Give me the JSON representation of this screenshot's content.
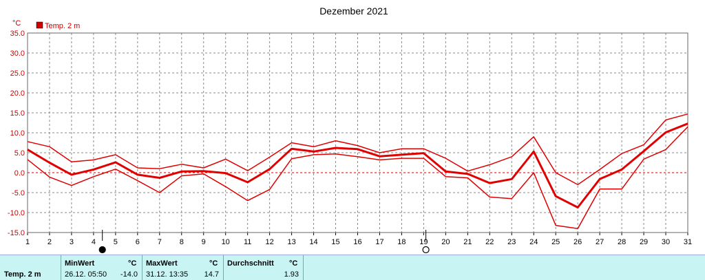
{
  "chart_data": {
    "type": "line",
    "title": "Dezember 2021",
    "unit": "°C",
    "legend": "Temp. 2 m",
    "legend_color": "#cc0000",
    "line_color": "#e00000",
    "grid_color": "#888888",
    "zero_line_color": "#cc0000",
    "xlim": [
      1,
      31
    ],
    "ylim": [
      -15,
      35
    ],
    "yticks": [
      35,
      30,
      25,
      20,
      15,
      10,
      5,
      0,
      -5,
      -10,
      -15
    ],
    "ytick_labels": [
      "35.0",
      "30.0",
      "25.0",
      "20.0",
      "15.0",
      "10.0",
      "5.0",
      "0.0",
      "-5.0",
      "-10.0",
      "-15.0"
    ],
    "x": [
      1,
      2,
      3,
      4,
      5,
      6,
      7,
      8,
      9,
      10,
      11,
      12,
      13,
      14,
      15,
      16,
      17,
      18,
      19,
      20,
      21,
      22,
      23,
      24,
      25,
      26,
      27,
      28,
      29,
      30,
      31
    ],
    "series": [
      {
        "role": "max",
        "width": 1.5,
        "values": [
          7.8,
          6.5,
          2.7,
          3.2,
          4.5,
          1.2,
          1.0,
          2.1,
          1.2,
          3.4,
          0.5,
          3.9,
          7.5,
          6.5,
          8.0,
          6.8,
          5.0,
          6.0,
          6.0,
          3.6,
          0.4,
          2.0,
          4.0,
          9.0,
          0.0,
          -3.0,
          0.8,
          4.8,
          7.0,
          13.2,
          14.7
        ]
      },
      {
        "role": "mean",
        "width": 3,
        "values": [
          5.8,
          2.5,
          -0.5,
          0.8,
          2.6,
          -0.5,
          -1.3,
          0.3,
          0.4,
          -0.1,
          -2.4,
          0.9,
          6.0,
          5.3,
          6.2,
          5.9,
          4.1,
          4.5,
          4.9,
          0.3,
          -0.3,
          -2.6,
          -1.6,
          5.3,
          -5.9,
          -8.7,
          -1.6,
          0.8,
          5.4,
          10.1,
          12.3
        ]
      },
      {
        "role": "min",
        "width": 1.5,
        "values": [
          3.3,
          -1.1,
          -3.2,
          -1.0,
          0.9,
          -2.0,
          -5.0,
          -0.8,
          -0.3,
          -3.5,
          -7.0,
          -4.2,
          3.5,
          4.5,
          4.7,
          4.0,
          3.2,
          3.6,
          3.6,
          -1.0,
          -1.3,
          -6.1,
          -6.5,
          0.0,
          -13.2,
          -14.0,
          -4.1,
          -4.1,
          3.4,
          5.8,
          11.5
        ]
      }
    ],
    "moon_phases": [
      {
        "day": 4.4,
        "phase": "new"
      },
      {
        "day": 19.1,
        "phase": "full"
      }
    ]
  },
  "footer": {
    "sensor": "Temp. 2 m",
    "min": {
      "label": "MinWert",
      "unit": "°C",
      "datetime": "26.12.  05:50",
      "value": "-14.0"
    },
    "max": {
      "label": "MaxWert",
      "unit": "°C",
      "datetime": "31.12.  13:35",
      "value": "14.7"
    },
    "avg": {
      "label": "Durchschnitt",
      "unit": "°C",
      "value": "1.93"
    }
  }
}
